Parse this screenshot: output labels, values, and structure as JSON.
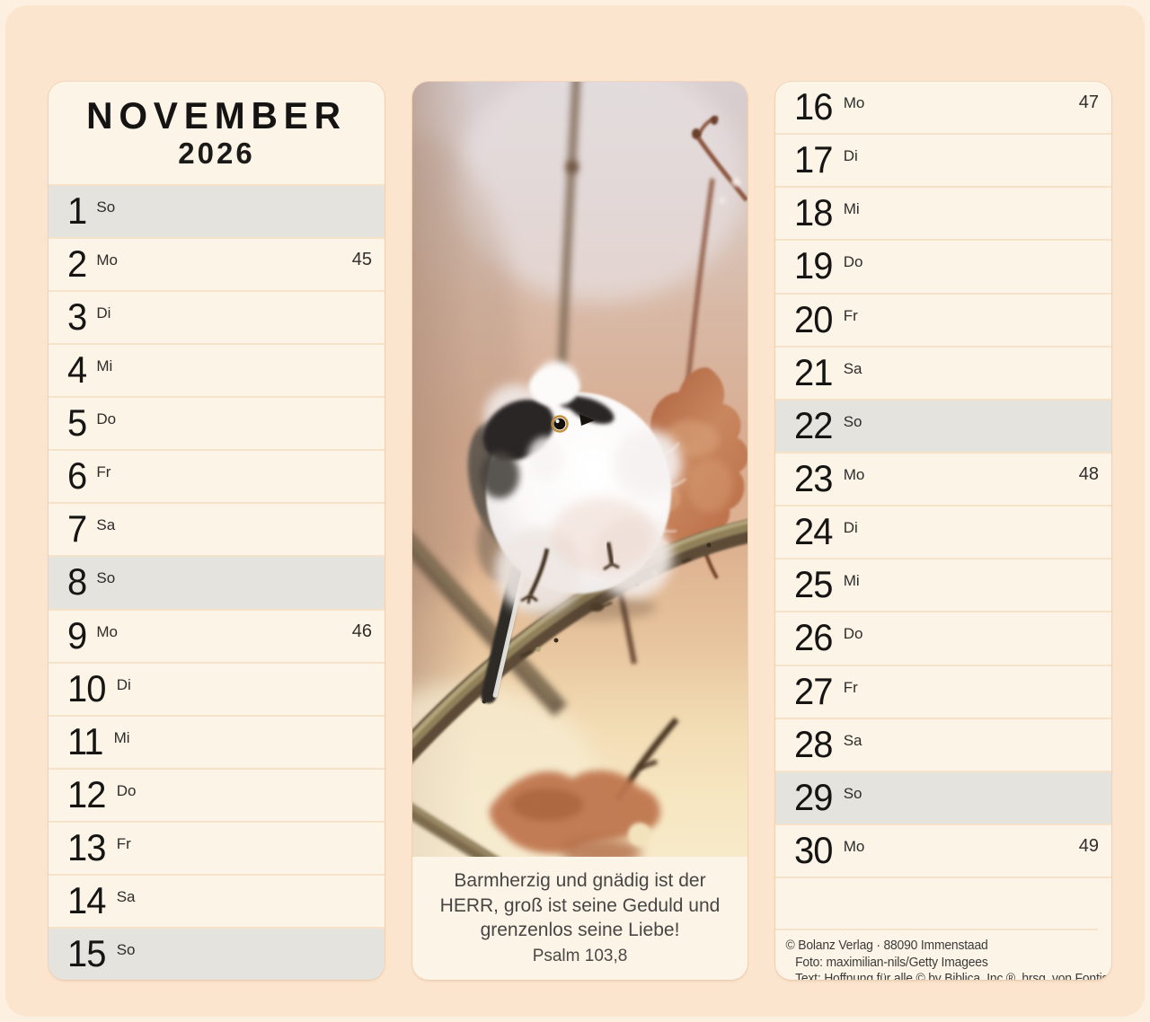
{
  "title": {
    "month": "NOVEMBER",
    "year": "2026"
  },
  "calendar": {
    "left_days": [
      {
        "day": "1",
        "abbr": "So",
        "week": "",
        "sunday": true
      },
      {
        "day": "2",
        "abbr": "Mo",
        "week": "45",
        "sunday": false
      },
      {
        "day": "3",
        "abbr": "Di",
        "week": "",
        "sunday": false
      },
      {
        "day": "4",
        "abbr": "Mi",
        "week": "",
        "sunday": false
      },
      {
        "day": "5",
        "abbr": "Do",
        "week": "",
        "sunday": false
      },
      {
        "day": "6",
        "abbr": "Fr",
        "week": "",
        "sunday": false
      },
      {
        "day": "7",
        "abbr": "Sa",
        "week": "",
        "sunday": false
      },
      {
        "day": "8",
        "abbr": "So",
        "week": "",
        "sunday": true
      },
      {
        "day": "9",
        "abbr": "Mo",
        "week": "46",
        "sunday": false
      },
      {
        "day": "10",
        "abbr": "Di",
        "week": "",
        "sunday": false
      },
      {
        "day": "11",
        "abbr": "Mi",
        "week": "",
        "sunday": false
      },
      {
        "day": "12",
        "abbr": "Do",
        "week": "",
        "sunday": false
      },
      {
        "day": "13",
        "abbr": "Fr",
        "week": "",
        "sunday": false
      },
      {
        "day": "14",
        "abbr": "Sa",
        "week": "",
        "sunday": false
      },
      {
        "day": "15",
        "abbr": "So",
        "week": "",
        "sunday": true
      }
    ],
    "right_days": [
      {
        "day": "16",
        "abbr": "Mo",
        "week": "47",
        "sunday": false
      },
      {
        "day": "17",
        "abbr": "Di",
        "week": "",
        "sunday": false
      },
      {
        "day": "18",
        "abbr": "Mi",
        "week": "",
        "sunday": false
      },
      {
        "day": "19",
        "abbr": "Do",
        "week": "",
        "sunday": false
      },
      {
        "day": "20",
        "abbr": "Fr",
        "week": "",
        "sunday": false
      },
      {
        "day": "21",
        "abbr": "Sa",
        "week": "",
        "sunday": false
      },
      {
        "day": "22",
        "abbr": "So",
        "week": "",
        "sunday": true
      },
      {
        "day": "23",
        "abbr": "Mo",
        "week": "48",
        "sunday": false
      },
      {
        "day": "24",
        "abbr": "Di",
        "week": "",
        "sunday": false
      },
      {
        "day": "25",
        "abbr": "Mi",
        "week": "",
        "sunday": false
      },
      {
        "day": "26",
        "abbr": "Do",
        "week": "",
        "sunday": false
      },
      {
        "day": "27",
        "abbr": "Fr",
        "week": "",
        "sunday": false
      },
      {
        "day": "28",
        "abbr": "Sa",
        "week": "",
        "sunday": false
      },
      {
        "day": "29",
        "abbr": "So",
        "week": "",
        "sunday": true
      },
      {
        "day": "30",
        "abbr": "Mo",
        "week": "49",
        "sunday": false
      }
    ]
  },
  "verse": {
    "text": "Barmherzig und gnädig ist der HERR, groß ist seine Geduld und grenzenlos seine Liebe!",
    "reference": "Psalm 103,8"
  },
  "credits": {
    "line1": "© Bolanz Verlag · 88090 Immenstaad",
    "line2": "Foto: maximilian-nils/Getty Imagees",
    "line3": "Text: Hoffnung für alle © by Biblica, Inc.®, hrsg. von Fontis"
  },
  "photo": {
    "description": "Long-tailed tit (Schwanzmeise) perched on a diagonal winter branch with a dried oak leaf, warm peach blurred background"
  },
  "colors": {
    "page_bg": "#fce5cf",
    "page_margin": "#fdf0e1",
    "panel_bg": "#fcf4e7",
    "sunday_row_bg": "#e5e3de",
    "row_separator": "#f5e2c9",
    "text_dark": "#161514"
  }
}
